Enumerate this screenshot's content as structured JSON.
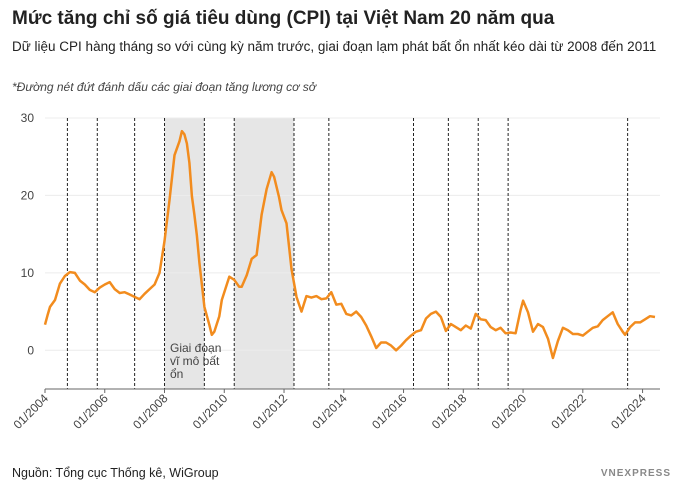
{
  "title": "Mức tăng chỉ số giá tiêu dùng (CPI) tại Việt Nam 20 năm qua",
  "subtitle": "Dữ liệu CPI hàng tháng so với cùng kỳ năm trước, giai đoạn lạm phát bất ổn nhất kéo dài từ 2008 đến 2011",
  "note": "*Đường nét đứt đánh dấu các giai đoạn tăng lương cơ sở",
  "source": "Nguồn: Tổng cục Thống kê, WiGroup",
  "brand": "VNEXPRESS",
  "chart_data": {
    "type": "line",
    "x": [
      "01/2004",
      "02/2004",
      "03/2004",
      "05/2004",
      "07/2004",
      "09/2004",
      "11/2004",
      "01/2005",
      "03/2005",
      "05/2005",
      "07/2005",
      "09/2005",
      "11/2005",
      "01/2006",
      "03/2006",
      "05/2006",
      "07/2006",
      "09/2006",
      "11/2006",
      "01/2007",
      "03/2007",
      "05/2007",
      "07/2007",
      "09/2007",
      "11/2007",
      "01/2008",
      "03/2008",
      "05/2008",
      "07/2008",
      "08/2008",
      "09/2008",
      "10/2008",
      "11/2008",
      "12/2008",
      "01/2009",
      "02/2009",
      "03/2009",
      "05/2009",
      "07/2009",
      "08/2009",
      "09/2009",
      "11/2009",
      "12/2009",
      "02/2010",
      "03/2010",
      "05/2010",
      "07/2010",
      "08/2010",
      "10/2010",
      "12/2010",
      "02/2011",
      "04/2011",
      "06/2011",
      "08/2011",
      "09/2011",
      "11/2011",
      "12/2011",
      "02/2012",
      "04/2012",
      "06/2012",
      "08/2012",
      "10/2012",
      "12/2012",
      "02/2013",
      "04/2013",
      "06/2013",
      "08/2013",
      "10/2013",
      "12/2013",
      "02/2014",
      "04/2014",
      "06/2014",
      "08/2014",
      "10/2014",
      "12/2014",
      "02/2015",
      "04/2015",
      "06/2015",
      "08/2015",
      "10/2015",
      "12/2015",
      "02/2016",
      "04/2016",
      "06/2016",
      "08/2016",
      "10/2016",
      "12/2016",
      "02/2017",
      "04/2017",
      "06/2017",
      "08/2017",
      "10/2017",
      "12/2017",
      "02/2018",
      "04/2018",
      "06/2018",
      "08/2018",
      "10/2018",
      "12/2018",
      "02/2019",
      "04/2019",
      "06/2019",
      "08/2019",
      "10/2019",
      "12/2019",
      "01/2020",
      "03/2020",
      "05/2020",
      "07/2020",
      "09/2020",
      "11/2020",
      "01/2021",
      "03/2021",
      "05/2021",
      "07/2021",
      "09/2021",
      "11/2021",
      "01/2022",
      "03/2022",
      "05/2022",
      "07/2022",
      "09/2022",
      "11/2022",
      "01/2023",
      "03/2023",
      "05/2023",
      "06/2023",
      "08/2023",
      "10/2023",
      "12/2023",
      "02/2024",
      "04/2024",
      "06/2024"
    ],
    "series": [
      {
        "name": "CPI",
        "color": "#f28c1e",
        "values": [
          3.3,
          4.5,
          5.6,
          6.5,
          8.6,
          9.6,
          10.1,
          10.0,
          9.0,
          8.5,
          7.8,
          7.5,
          8.1,
          8.5,
          8.8,
          7.9,
          7.4,
          7.5,
          7.2,
          6.9,
          6.6,
          7.3,
          7.9,
          8.5,
          10.0,
          14.1,
          19.4,
          25.2,
          27.0,
          28.3,
          27.9,
          26.7,
          24.2,
          19.9,
          17.5,
          14.8,
          11.3,
          5.6,
          3.3,
          2.0,
          2.4,
          4.4,
          6.5,
          8.5,
          9.5,
          9.1,
          8.2,
          8.2,
          9.7,
          11.8,
          12.3,
          17.5,
          20.8,
          23.0,
          22.4,
          19.8,
          18.1,
          16.4,
          10.5,
          6.9,
          5.0,
          7.0,
          6.8,
          7.0,
          6.6,
          6.7,
          7.5,
          5.9,
          6.0,
          4.7,
          4.5,
          5.0,
          4.3,
          3.2,
          1.8,
          0.3,
          1.0,
          1.0,
          0.6,
          0.0,
          0.6,
          1.3,
          1.9,
          2.4,
          2.6,
          4.1,
          4.7,
          5.0,
          4.3,
          2.5,
          3.4,
          3.0,
          2.6,
          3.2,
          2.8,
          4.7,
          4.0,
          3.9,
          3.0,
          2.6,
          2.9,
          2.2,
          2.3,
          2.2,
          5.2,
          6.4,
          4.9,
          2.4,
          3.4,
          3.0,
          1.5,
          -1.0,
          1.2,
          2.9,
          2.6,
          2.1,
          2.1,
          1.9,
          2.4,
          2.9,
          3.1,
          3.9,
          4.4,
          4.9,
          3.4,
          2.4,
          2.0,
          3.0,
          3.6,
          3.6,
          4.0,
          4.4,
          4.3
        ]
      }
    ],
    "xlim": [
      "01/2004",
      "08/2024"
    ],
    "xticks": [
      "01/2004",
      "01/2006",
      "01/2008",
      "01/2010",
      "01/2012",
      "01/2014",
      "01/2016",
      "01/2018",
      "01/2020",
      "01/2022",
      "01/2024"
    ],
    "ylim": [
      -5,
      30
    ],
    "yticks": [
      0,
      10,
      20,
      30
    ],
    "grid": true,
    "dashed_lines": [
      "10/2004",
      "10/2005",
      "01/2007",
      "01/2008",
      "05/2009",
      "05/2010",
      "05/2012",
      "07/2013",
      "05/2016",
      "07/2017",
      "07/2018",
      "07/2019",
      "07/2023"
    ],
    "shaded_periods": [
      [
        "01/2008",
        "05/2009"
      ],
      [
        "05/2010",
        "05/2012"
      ]
    ],
    "annotation": [
      "Giai đoạn",
      "vĩ mô bất",
      "ổn"
    ]
  }
}
